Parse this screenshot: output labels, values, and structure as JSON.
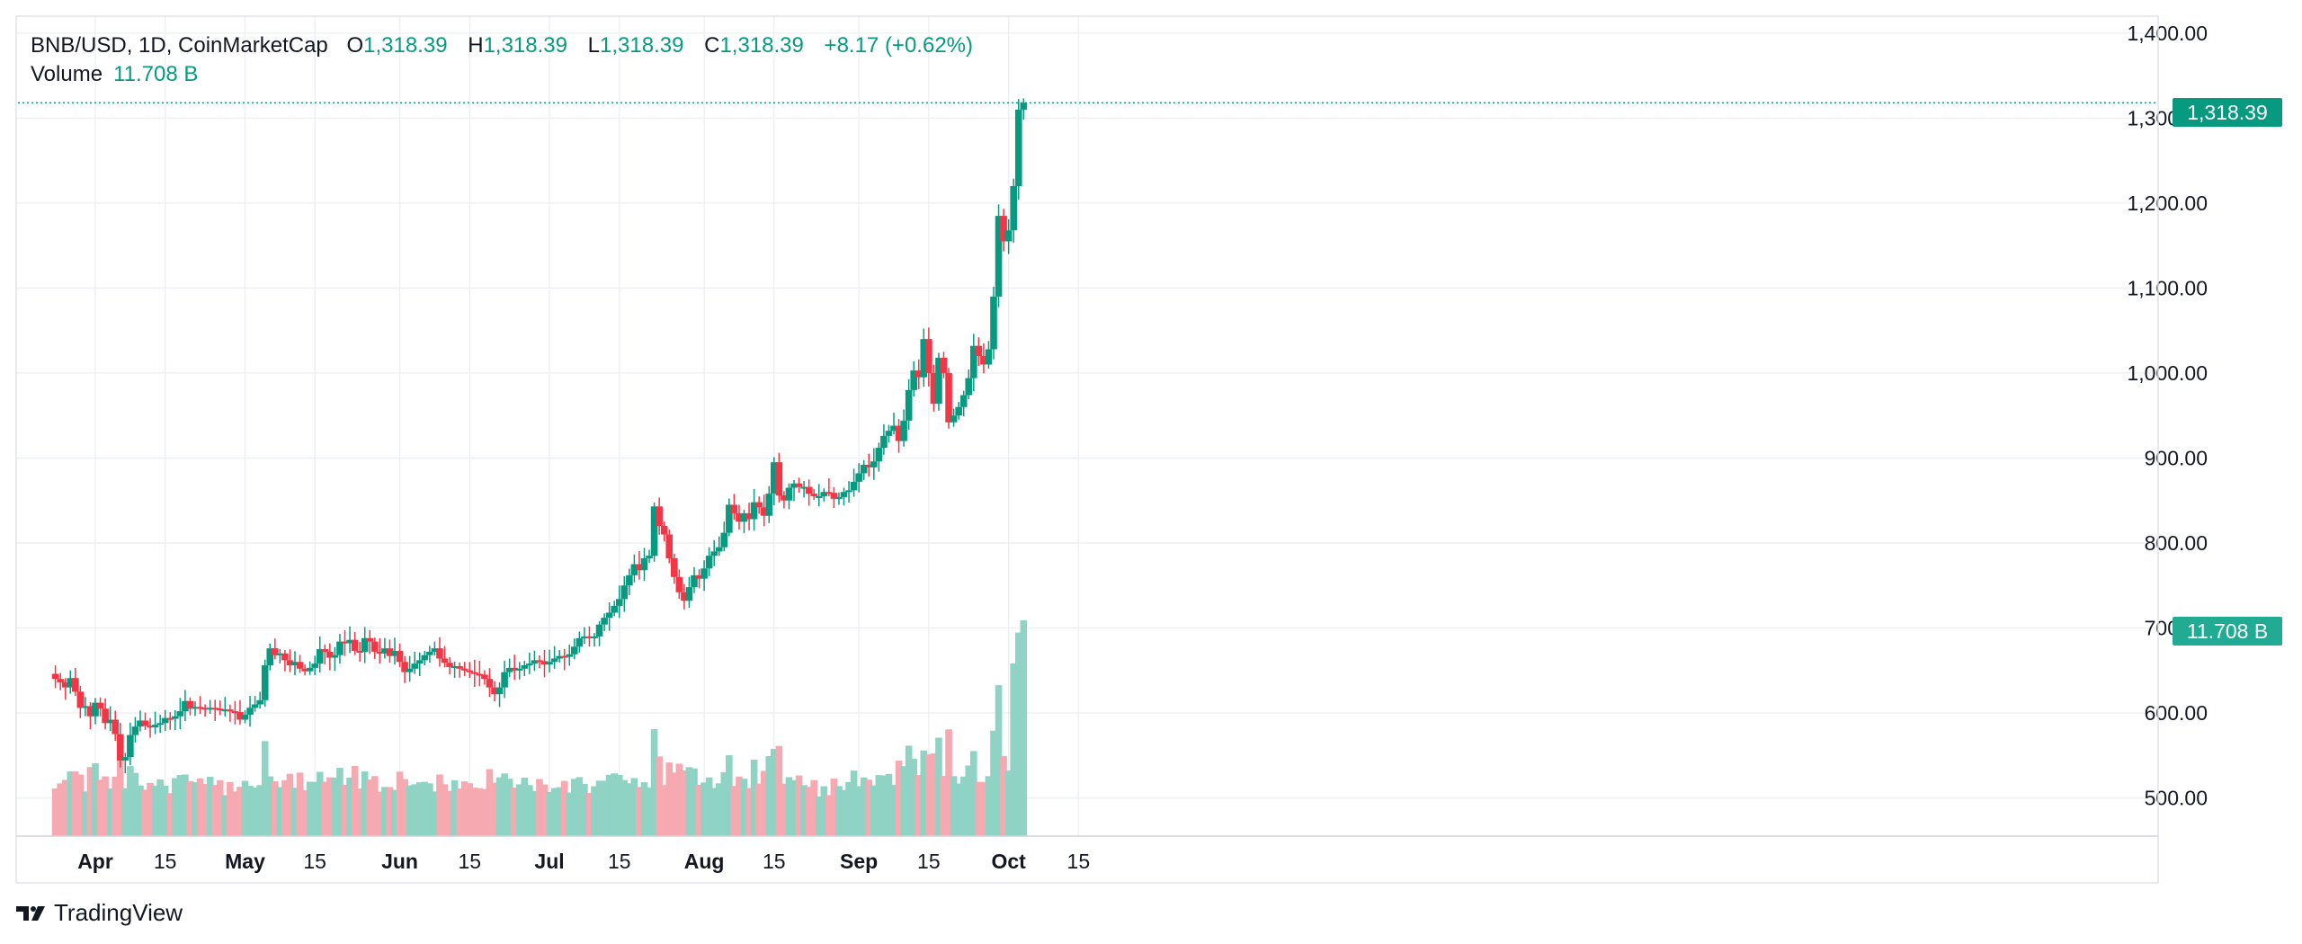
{
  "header": {
    "symbol": "BNB/USD, 1D, CoinMarketCap",
    "o_label": "O",
    "o_value": "1,318.39",
    "h_label": "H",
    "h_value": "1,318.39",
    "l_label": "L",
    "l_value": "1,318.39",
    "c_label": "C",
    "c_value": "1,318.39",
    "change": "+8.17 (+0.62%)",
    "volume_label": "Volume",
    "volume_value": "11.708 B"
  },
  "price_tag": "1,318.39",
  "volume_tag": "11.708 B",
  "brand": "TradingView",
  "colors": {
    "up": "#089981",
    "down": "#f23645",
    "up_vol": "#8fd3c4",
    "down_vol": "#f7a9b1",
    "grid": "#eef0f3"
  },
  "chart_data": {
    "type": "candlestick",
    "title": "BNB/USD, 1D, CoinMarketCap",
    "y_ticks": [
      "500.00",
      "600.00",
      "700.00",
      "800.00",
      "900.00",
      "1,000.00",
      "1,100.00",
      "1,200.00",
      "1,300.00",
      "1,400.00"
    ],
    "y_tick_values": [
      500,
      600,
      700,
      800,
      900,
      1000,
      1100,
      1200,
      1300,
      1400
    ],
    "ylim": [
      455,
      1420
    ],
    "x_labels": [
      {
        "label": "Apr",
        "day": 0,
        "bold": true
      },
      {
        "label": "15",
        "day": 14,
        "bold": false
      },
      {
        "label": "May",
        "day": 30,
        "bold": true
      },
      {
        "label": "15",
        "day": 44,
        "bold": false
      },
      {
        "label": "Jun",
        "day": 61,
        "bold": true
      },
      {
        "label": "15",
        "day": 75,
        "bold": false
      },
      {
        "label": "Jul",
        "day": 91,
        "bold": true
      },
      {
        "label": "15",
        "day": 105,
        "bold": false
      },
      {
        "label": "Aug",
        "day": 122,
        "bold": true
      },
      {
        "label": "15",
        "day": 136,
        "bold": false
      },
      {
        "label": "Sep",
        "day": 153,
        "bold": true
      },
      {
        "label": "15",
        "day": 167,
        "bold": false
      },
      {
        "label": "Oct",
        "day": 183,
        "bold": true
      },
      {
        "label": "15",
        "day": 197,
        "bold": false
      }
    ],
    "first_day_offset": -8,
    "closes": [
      640,
      636,
      630,
      641,
      625,
      606,
      608,
      596,
      612,
      605,
      588,
      592,
      575,
      544,
      548,
      574,
      584,
      591,
      585,
      583,
      586,
      588,
      594,
      593,
      596,
      602,
      614,
      605,
      607,
      606,
      604,
      606,
      605,
      603,
      604,
      602,
      601,
      592,
      598,
      606,
      610,
      615,
      656,
      676,
      668,
      670,
      662,
      656,
      660,
      652,
      649,
      653,
      658,
      675,
      672,
      665,
      668,
      684,
      682,
      686,
      673,
      672,
      688,
      684,
      672,
      670,
      676,
      667,
      673,
      660,
      648,
      652,
      658,
      662,
      668,
      672,
      676,
      664,
      659,
      654,
      655,
      652,
      650,
      648,
      646,
      645,
      640,
      630,
      622,
      630,
      648,
      653,
      650,
      652,
      656,
      658,
      662,
      661,
      657,
      660,
      664,
      667,
      666,
      669,
      678,
      688,
      690,
      688,
      690,
      704,
      712,
      718,
      726,
      734,
      750,
      762,
      775,
      768,
      782,
      785,
      843,
      820,
      810,
      782,
      760,
      742,
      732,
      748,
      762,
      758,
      770,
      785,
      790,
      795,
      812,
      845,
      835,
      825,
      835,
      828,
      848,
      842,
      832,
      858,
      895,
      856,
      850,
      865,
      870,
      866,
      866,
      858,
      855,
      855,
      860,
      859,
      852,
      854,
      860,
      862,
      872,
      882,
      892,
      889,
      896,
      912,
      926,
      932,
      938,
      920,
      944,
      980,
      1003,
      995,
      1040,
      1000,
      964,
      1018,
      1000,
      942,
      950,
      960,
      974,
      994,
      1032,
      1020,
      1010,
      1028,
      1090,
      1185,
      1155,
      1168,
      1220,
      1310,
      1318
    ],
    "volume_ylim": [
      0,
      300
    ]
  }
}
